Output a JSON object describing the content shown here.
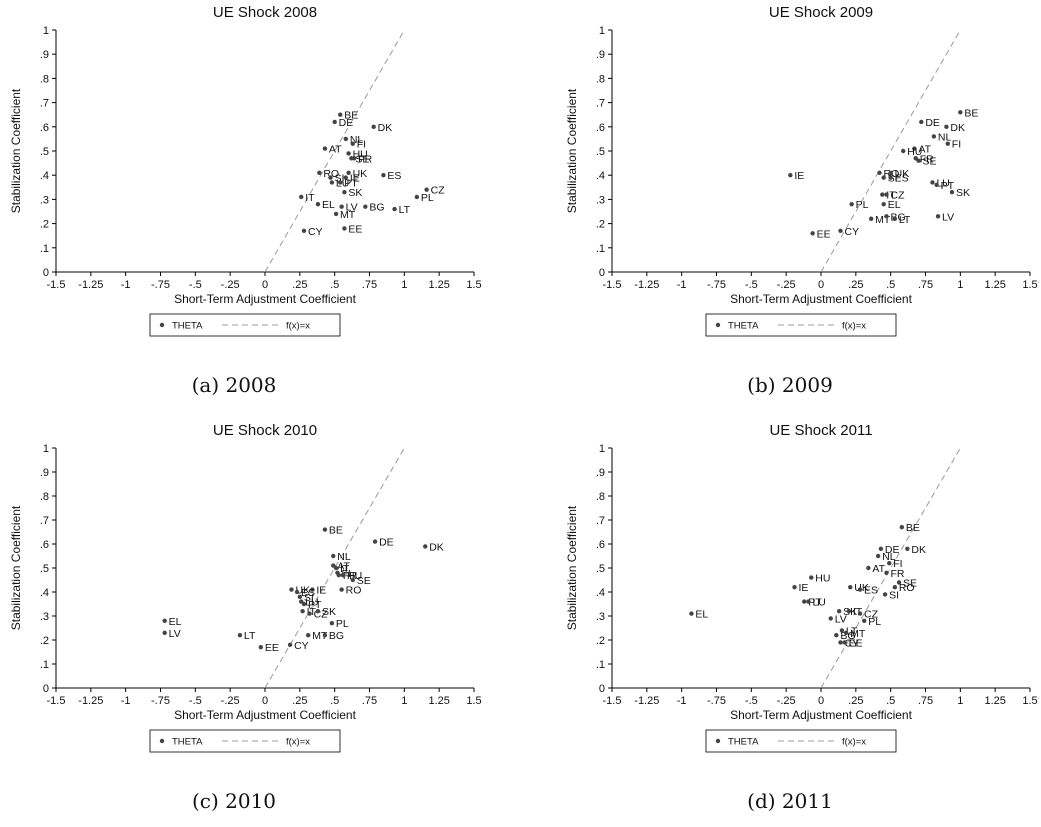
{
  "chart_data": [
    {
      "type": "scatter",
      "title": "UE Shock 2008",
      "caption": "(a) 2008",
      "xlabel": "Short-Term Adjustment Coefficient",
      "ylabel": "Stabilization Coefficient",
      "xlim": [
        -1.5,
        1.5
      ],
      "ylim": [
        0,
        1
      ],
      "xticks": [
        "-1.5",
        "-1.25",
        "-1",
        "-.75",
        "-.5",
        "-.25",
        "0",
        ".25",
        ".5",
        ".75",
        "1",
        "1.25",
        "1.5"
      ],
      "yticks": [
        "0",
        ".1",
        ".2",
        ".3",
        ".4",
        ".5",
        ".6",
        ".7",
        ".8",
        ".9",
        "1"
      ],
      "legend": [
        "THETA",
        "f(x)=x"
      ],
      "points": [
        {
          "label": "BE",
          "x": 0.54,
          "y": 0.65
        },
        {
          "label": "DE",
          "x": 0.5,
          "y": 0.62
        },
        {
          "label": "DK",
          "x": 0.78,
          "y": 0.6
        },
        {
          "label": "NL",
          "x": 0.58,
          "y": 0.55
        },
        {
          "label": "FI",
          "x": 0.63,
          "y": 0.53
        },
        {
          "label": "AT",
          "x": 0.43,
          "y": 0.51
        },
        {
          "label": "HU",
          "x": 0.6,
          "y": 0.49
        },
        {
          "label": "SE",
          "x": 0.62,
          "y": 0.47
        },
        {
          "label": "FR",
          "x": 0.64,
          "y": 0.47
        },
        {
          "label": "RO",
          "x": 0.39,
          "y": 0.41
        },
        {
          "label": "UK",
          "x": 0.6,
          "y": 0.41
        },
        {
          "label": "ES",
          "x": 0.85,
          "y": 0.4
        },
        {
          "label": "SI",
          "x": 0.47,
          "y": 0.39
        },
        {
          "label": "IE",
          "x": 0.58,
          "y": 0.39
        },
        {
          "label": "LU",
          "x": 0.48,
          "y": 0.37
        },
        {
          "label": "PT",
          "x": 0.54,
          "y": 0.37
        },
        {
          "label": "CZ",
          "x": 1.16,
          "y": 0.34
        },
        {
          "label": "SK",
          "x": 0.57,
          "y": 0.33
        },
        {
          "label": "IT",
          "x": 0.26,
          "y": 0.31
        },
        {
          "label": "PL",
          "x": 1.09,
          "y": 0.31
        },
        {
          "label": "EL",
          "x": 0.38,
          "y": 0.28
        },
        {
          "label": "LV",
          "x": 0.55,
          "y": 0.27
        },
        {
          "label": "BG",
          "x": 0.72,
          "y": 0.27
        },
        {
          "label": "LT",
          "x": 0.93,
          "y": 0.26
        },
        {
          "label": "MT",
          "x": 0.51,
          "y": 0.24
        },
        {
          "label": "EE",
          "x": 0.57,
          "y": 0.18
        },
        {
          "label": "CY",
          "x": 0.28,
          "y": 0.17
        }
      ]
    },
    {
      "type": "scatter",
      "title": "UE Shock 2009",
      "caption": "(b) 2009",
      "xlabel": "Short-Term Adjustment Coefficient",
      "ylabel": "Stabilization Coefficient",
      "xlim": [
        -1.5,
        1.5
      ],
      "ylim": [
        0,
        1
      ],
      "xticks": [
        "-1.5",
        "-1.25",
        "-1",
        "-.75",
        "-.5",
        "-.25",
        "0",
        ".25",
        ".5",
        ".75",
        "1",
        "1.25",
        "1.5"
      ],
      "yticks": [
        "0",
        ".1",
        ".2",
        ".3",
        ".4",
        ".5",
        ".6",
        ".7",
        ".8",
        ".9",
        "1"
      ],
      "legend": [
        "THETA",
        "f(x)=x"
      ],
      "points": [
        {
          "label": "BE",
          "x": 1.0,
          "y": 0.66
        },
        {
          "label": "DE",
          "x": 0.72,
          "y": 0.62
        },
        {
          "label": "DK",
          "x": 0.9,
          "y": 0.6
        },
        {
          "label": "NL",
          "x": 0.81,
          "y": 0.56
        },
        {
          "label": "FI",
          "x": 0.91,
          "y": 0.53
        },
        {
          "label": "AT",
          "x": 0.67,
          "y": 0.51
        },
        {
          "label": "HU",
          "x": 0.59,
          "y": 0.5
        },
        {
          "label": "FR",
          "x": 0.68,
          "y": 0.47
        },
        {
          "label": "SE",
          "x": 0.7,
          "y": 0.46
        },
        {
          "label": "RO",
          "x": 0.42,
          "y": 0.41
        },
        {
          "label": "UK",
          "x": 0.5,
          "y": 0.41
        },
        {
          "label": "IE",
          "x": -0.22,
          "y": 0.4
        },
        {
          "label": "SI",
          "x": 0.45,
          "y": 0.39
        },
        {
          "label": "ES",
          "x": 0.5,
          "y": 0.39
        },
        {
          "label": "LU",
          "x": 0.8,
          "y": 0.37
        },
        {
          "label": "PT",
          "x": 0.83,
          "y": 0.36
        },
        {
          "label": "SK",
          "x": 0.94,
          "y": 0.33
        },
        {
          "label": "IT",
          "x": 0.44,
          "y": 0.32
        },
        {
          "label": "CZ",
          "x": 0.47,
          "y": 0.32
        },
        {
          "label": "PL",
          "x": 0.22,
          "y": 0.28
        },
        {
          "label": "EL",
          "x": 0.45,
          "y": 0.28
        },
        {
          "label": "LV",
          "x": 0.84,
          "y": 0.23
        },
        {
          "label": "MT",
          "x": 0.36,
          "y": 0.22
        },
        {
          "label": "BG",
          "x": 0.47,
          "y": 0.23
        },
        {
          "label": "LT",
          "x": 0.53,
          "y": 0.22
        },
        {
          "label": "CY",
          "x": 0.14,
          "y": 0.17
        },
        {
          "label": "EE",
          "x": -0.06,
          "y": 0.16
        }
      ]
    },
    {
      "type": "scatter",
      "title": "UE Shock 2010",
      "caption": "(c) 2010",
      "xlabel": "Short-Term Adjustment Coefficient",
      "ylabel": "Stabilization Coefficient",
      "xlim": [
        -1.5,
        1.5
      ],
      "ylim": [
        0,
        1
      ],
      "xticks": [
        "-1.5",
        "-1.25",
        "-1",
        "-.75",
        "-.5",
        "-.25",
        "0",
        ".25",
        ".5",
        ".75",
        "1",
        "1.25",
        "1.5"
      ],
      "yticks": [
        "0",
        ".1",
        ".2",
        ".3",
        ".4",
        ".5",
        ".6",
        ".7",
        ".8",
        ".9",
        "1"
      ],
      "legend": [
        "THETA",
        "f(x)=x"
      ],
      "points": [
        {
          "label": "BE",
          "x": 0.43,
          "y": 0.66
        },
        {
          "label": "DE",
          "x": 0.79,
          "y": 0.61
        },
        {
          "label": "DK",
          "x": 1.15,
          "y": 0.59
        },
        {
          "label": "NL",
          "x": 0.49,
          "y": 0.55
        },
        {
          "label": "AT",
          "x": 0.49,
          "y": 0.51
        },
        {
          "label": "IT",
          "x": 0.51,
          "y": 0.5
        },
        {
          "label": "FI",
          "x": 0.52,
          "y": 0.48
        },
        {
          "label": "FR",
          "x": 0.53,
          "y": 0.47
        },
        {
          "label": "HU",
          "x": 0.56,
          "y": 0.47
        },
        {
          "label": "SE",
          "x": 0.63,
          "y": 0.45
        },
        {
          "label": "RO",
          "x": 0.55,
          "y": 0.41
        },
        {
          "label": "IE",
          "x": 0.34,
          "y": 0.41
        },
        {
          "label": "UK",
          "x": 0.19,
          "y": 0.41
        },
        {
          "label": "ES",
          "x": 0.23,
          "y": 0.4
        },
        {
          "label": "SI",
          "x": 0.25,
          "y": 0.38
        },
        {
          "label": "LU",
          "x": 0.26,
          "y": 0.36
        },
        {
          "label": "PT",
          "x": 0.28,
          "y": 0.35
        },
        {
          "label": "IT",
          "x": 0.27,
          "y": 0.32
        },
        {
          "label": "CZ",
          "x": 0.32,
          "y": 0.31
        },
        {
          "label": "SK",
          "x": 0.38,
          "y": 0.32
        },
        {
          "label": "PL",
          "x": 0.48,
          "y": 0.27
        },
        {
          "label": "EL",
          "x": -0.72,
          "y": 0.28
        },
        {
          "label": "LV",
          "x": -0.72,
          "y": 0.23
        },
        {
          "label": "LT",
          "x": -0.18,
          "y": 0.22
        },
        {
          "label": "MT",
          "x": 0.31,
          "y": 0.22
        },
        {
          "label": "BG",
          "x": 0.43,
          "y": 0.22
        },
        {
          "label": "EE",
          "x": -0.03,
          "y": 0.17
        },
        {
          "label": "CY",
          "x": 0.18,
          "y": 0.18
        }
      ]
    },
    {
      "type": "scatter",
      "title": "UE Shock 2011",
      "caption": "(d) 2011",
      "xlabel": "Short-Term Adjustment Coefficient",
      "ylabel": "Stabilization Coefficient",
      "xlim": [
        -1.5,
        1.5
      ],
      "ylim": [
        0,
        1
      ],
      "xticks": [
        "-1.5",
        "-1.25",
        "-1",
        "-.75",
        "-.5",
        "-.25",
        "0",
        ".25",
        ".5",
        ".75",
        "1",
        "1.25",
        "1.5"
      ],
      "yticks": [
        "0",
        ".1",
        ".2",
        ".3",
        ".4",
        ".5",
        ".6",
        ".7",
        ".8",
        ".9",
        "1"
      ],
      "legend": [
        "THETA",
        "f(x)=x"
      ],
      "points": [
        {
          "label": "BE",
          "x": 0.58,
          "y": 0.67
        },
        {
          "label": "DE",
          "x": 0.43,
          "y": 0.58
        },
        {
          "label": "DK",
          "x": 0.62,
          "y": 0.58
        },
        {
          "label": "NL",
          "x": 0.41,
          "y": 0.55
        },
        {
          "label": "FI",
          "x": 0.49,
          "y": 0.52
        },
        {
          "label": "AT",
          "x": 0.34,
          "y": 0.5
        },
        {
          "label": "FR",
          "x": 0.47,
          "y": 0.48
        },
        {
          "label": "HU",
          "x": -0.07,
          "y": 0.46
        },
        {
          "label": "SE",
          "x": 0.56,
          "y": 0.44
        },
        {
          "label": "RO",
          "x": 0.53,
          "y": 0.42
        },
        {
          "label": "IE",
          "x": -0.19,
          "y": 0.42
        },
        {
          "label": "UK",
          "x": 0.21,
          "y": 0.42
        },
        {
          "label": "ES",
          "x": 0.28,
          "y": 0.41
        },
        {
          "label": "SI",
          "x": 0.46,
          "y": 0.39
        },
        {
          "label": "PT",
          "x": -0.12,
          "y": 0.36
        },
        {
          "label": "LU",
          "x": -0.09,
          "y": 0.36
        },
        {
          "label": "SK",
          "x": 0.13,
          "y": 0.32
        },
        {
          "label": "IT",
          "x": 0.2,
          "y": 0.32
        },
        {
          "label": "CZ",
          "x": 0.28,
          "y": 0.31
        },
        {
          "label": "LV",
          "x": 0.07,
          "y": 0.29
        },
        {
          "label": "PL",
          "x": 0.31,
          "y": 0.28
        },
        {
          "label": "EL",
          "x": -0.93,
          "y": 0.31
        },
        {
          "label": "LT",
          "x": 0.15,
          "y": 0.24
        },
        {
          "label": "BG",
          "x": 0.11,
          "y": 0.22
        },
        {
          "label": "MT",
          "x": 0.18,
          "y": 0.23
        },
        {
          "label": "CY",
          "x": 0.14,
          "y": 0.19
        },
        {
          "label": "EE",
          "x": 0.17,
          "y": 0.19
        }
      ]
    }
  ]
}
